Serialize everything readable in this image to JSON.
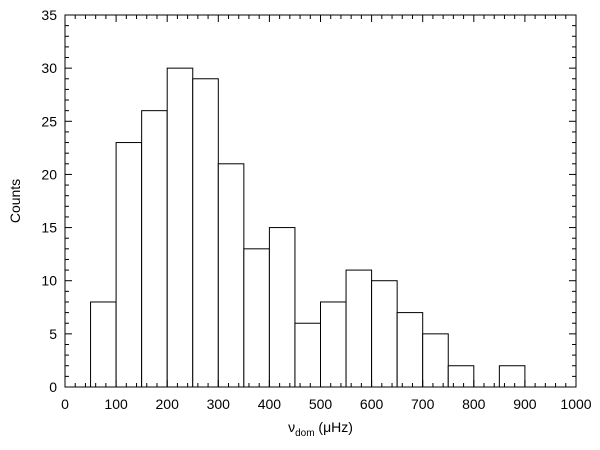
{
  "chart_data": {
    "type": "bar",
    "subtype": "histogram",
    "xlabel": {
      "symbol": "ν",
      "subscript": "dom",
      "unit": " (μHz)"
    },
    "ylabel": "Counts",
    "xlim": [
      0,
      1000
    ],
    "ylim": [
      0,
      35
    ],
    "x_major_ticks": [
      0,
      100,
      200,
      300,
      400,
      500,
      600,
      700,
      800,
      900,
      1000
    ],
    "x_minor_step": 20,
    "y_major_ticks": [
      0,
      5,
      10,
      15,
      20,
      25,
      30,
      35
    ],
    "y_minor_step": 1,
    "bin_width": 50,
    "bins": [
      {
        "start": 50,
        "end": 100,
        "count": 8
      },
      {
        "start": 100,
        "end": 150,
        "count": 23
      },
      {
        "start": 150,
        "end": 200,
        "count": 26
      },
      {
        "start": 200,
        "end": 250,
        "count": 30
      },
      {
        "start": 250,
        "end": 300,
        "count": 29
      },
      {
        "start": 300,
        "end": 350,
        "count": 21
      },
      {
        "start": 350,
        "end": 400,
        "count": 13
      },
      {
        "start": 400,
        "end": 450,
        "count": 15
      },
      {
        "start": 450,
        "end": 500,
        "count": 6
      },
      {
        "start": 500,
        "end": 550,
        "count": 8
      },
      {
        "start": 550,
        "end": 600,
        "count": 11
      },
      {
        "start": 600,
        "end": 650,
        "count": 10
      },
      {
        "start": 650,
        "end": 700,
        "count": 7
      },
      {
        "start": 700,
        "end": 750,
        "count": 5
      },
      {
        "start": 750,
        "end": 800,
        "count": 2
      },
      {
        "start": 800,
        "end": 850,
        "count": 0
      },
      {
        "start": 850,
        "end": 900,
        "count": 2
      }
    ],
    "grid": false,
    "bar_fill": "#ffffff",
    "bar_stroke": "#000000"
  }
}
